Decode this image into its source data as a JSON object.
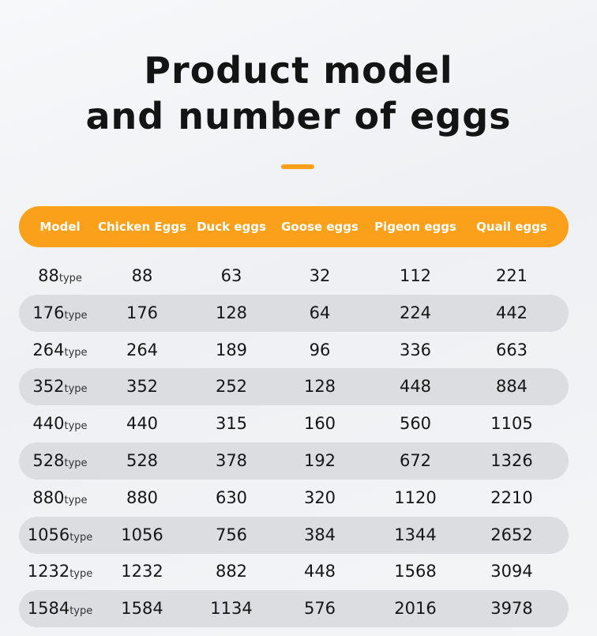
{
  "title": {
    "line1": "Product model",
    "line2": "and number of eggs"
  },
  "colors": {
    "accent": "#fba01a",
    "header_text": "#ffffff",
    "row_shade": "#dcdde0",
    "text": "#161616"
  },
  "table": {
    "headers": [
      "Model",
      "Chicken Eggs",
      "Duck eggs",
      "Goose eggs",
      "Pigeon eggs",
      "Quail eggs"
    ],
    "rows": [
      {
        "model": "88",
        "suffix": "type",
        "chicken": "88",
        "duck": "63",
        "goose": "32",
        "pigeon": "112",
        "quail": "221"
      },
      {
        "model": "176",
        "suffix": "type",
        "chicken": "176",
        "duck": "128",
        "goose": "64",
        "pigeon": "224",
        "quail": "442"
      },
      {
        "model": "264",
        "suffix": "type",
        "chicken": "264",
        "duck": "189",
        "goose": "96",
        "pigeon": "336",
        "quail": "663"
      },
      {
        "model": "352",
        "suffix": "type",
        "chicken": "352",
        "duck": "252",
        "goose": "128",
        "pigeon": "448",
        "quail": "884"
      },
      {
        "model": "440",
        "suffix": "type",
        "chicken": "440",
        "duck": "315",
        "goose": "160",
        "pigeon": "560",
        "quail": "1105"
      },
      {
        "model": "528",
        "suffix": "type",
        "chicken": "528",
        "duck": "378",
        "goose": "192",
        "pigeon": "672",
        "quail": "1326"
      },
      {
        "model": "880",
        "suffix": "type",
        "chicken": "880",
        "duck": "630",
        "goose": "320",
        "pigeon": "1120",
        "quail": "2210"
      },
      {
        "model": "1056",
        "suffix": "type",
        "chicken": "1056",
        "duck": "756",
        "goose": "384",
        "pigeon": "1344",
        "quail": "2652"
      },
      {
        "model": "1232",
        "suffix": "type",
        "chicken": "1232",
        "duck": "882",
        "goose": "448",
        "pigeon": "1568",
        "quail": "3094"
      },
      {
        "model": "1584",
        "suffix": "type",
        "chicken": "1584",
        "duck": "1134",
        "goose": "576",
        "pigeon": "2016",
        "quail": "3978"
      }
    ]
  }
}
